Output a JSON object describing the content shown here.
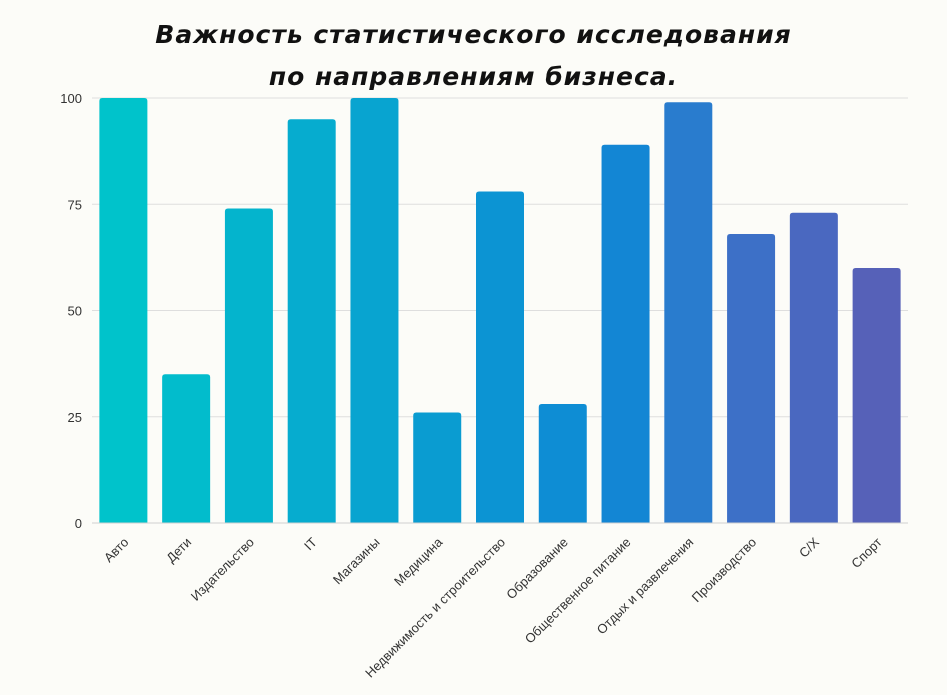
{
  "chart_data": {
    "type": "bar",
    "title": "Важность статистического исследования по направлениям бизнеса.",
    "xlabel": "",
    "ylabel": "",
    "categories": [
      "Авто",
      "Дети",
      "Издательство",
      "IT",
      "Магазины",
      "Медицина",
      "Недвижимость и строительство",
      "Образование",
      "Общественное питание",
      "Отдых и развлечения",
      "Производство",
      "С/Х",
      "Спорт"
    ],
    "values": [
      100,
      35,
      74,
      95,
      100,
      26,
      78,
      28,
      89,
      99,
      68,
      73,
      60
    ],
    "colors": [
      "#00c3cb",
      "#02bccc",
      "#04b4cd",
      "#06accf",
      "#08a4d0",
      "#0a9cd1",
      "#0c94d3",
      "#0e8dd4",
      "#1386d4",
      "#297cce",
      "#3d70c7",
      "#4a68c0",
      "#5661b8"
    ],
    "ylim": [
      0,
      100
    ],
    "yticks": [
      0,
      25,
      50,
      75,
      100
    ],
    "grid": true,
    "legend": "none"
  }
}
